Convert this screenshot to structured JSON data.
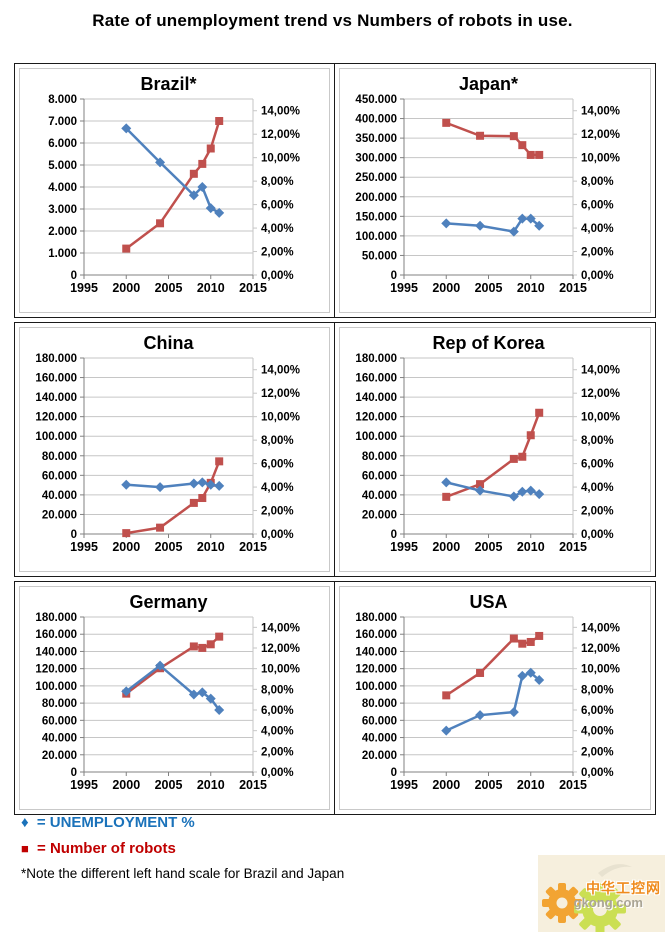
{
  "page": {
    "title": "Rate of unemployment trend vs Numbers of robots in use."
  },
  "legend": {
    "unemployment": {
      "marker": "♦",
      "label": "= UNEMPLOYMENT %",
      "color": "#1a72ba"
    },
    "robots": {
      "marker": "■",
      "label": "= Number of robots",
      "color": "#c00000"
    },
    "note": "*Note the different left hand scale for Brazil and Japan"
  },
  "watermark": {
    "site_name": "中华工控网",
    "domain": "gkong.com",
    "gear_orange": "#f2a433",
    "gear_green": "#cbdf53"
  },
  "chart_data": {
    "type": "line",
    "title": "Rate of unemployment trend vs Numbers of robots in use.",
    "layout": {
      "grid": "2 columns x 3 rows",
      "gridlines": "horizontal",
      "legend_position": "below charts",
      "dual_axis": true
    },
    "colors": {
      "unemployment_line": "#4f81bd",
      "robots_line": "#c0504d",
      "gridline": "#c6c6c6",
      "axis": "#808080",
      "text": "#000000"
    },
    "x_axis": {
      "min": 1995,
      "max": 2015,
      "ticks": [
        "1995",
        "2000",
        "2005",
        "2010",
        "2015"
      ]
    },
    "right_axis": {
      "label": "unemployment %",
      "max": 15,
      "tick_values": [
        14,
        12,
        10,
        8,
        6,
        4,
        2,
        0
      ],
      "tick_labels": [
        "14,00%",
        "12,00%",
        "10,00%",
        "8,00%",
        "6,00%",
        "4,00%",
        "2,00%",
        "0,00%"
      ]
    },
    "years": [
      2000,
      2004,
      2008,
      2009,
      2010,
      2011
    ],
    "charts": [
      {
        "title": "Brazil*",
        "left_max": 8000,
        "left_tick_labels": [
          "8.000",
          "7.000",
          "6.000",
          "5.000",
          "4.000",
          "3.000",
          "2.000",
          "1.000",
          "0"
        ],
        "robots": [
          1200,
          2350,
          4600,
          5050,
          5750,
          7000
        ],
        "unemployment_pct": [
          12.5,
          9.6,
          6.8,
          7.5,
          5.7,
          5.3
        ]
      },
      {
        "title": "Japan*",
        "left_max": 450000,
        "left_tick_labels": [
          "450.000",
          "400.000",
          "350.000",
          "300.000",
          "250.000",
          "200.000",
          "150.000",
          "100.000",
          "50.000",
          "0"
        ],
        "robots": [
          389000,
          356000,
          355000,
          332000,
          307000,
          307000
        ],
        "unemployment_pct": [
          4.4,
          4.2,
          3.7,
          4.8,
          4.8,
          4.2
        ]
      },
      {
        "title": "China",
        "left_max": 180000,
        "left_tick_labels": [
          "180.000",
          "160.000",
          "140.000",
          "120.000",
          "100.000",
          "80.000",
          "60.000",
          "40.000",
          "20.000",
          "0"
        ],
        "robots": [
          900,
          6500,
          31800,
          36800,
          52300,
          74300
        ],
        "unemployment_pct": [
          4.2,
          4.0,
          4.3,
          4.4,
          4.2,
          4.1
        ]
      },
      {
        "title": "Rep of Korea",
        "left_max": 180000,
        "left_tick_labels": [
          "180.000",
          "160.000",
          "140.000",
          "120.000",
          "100.000",
          "80.000",
          "60.000",
          "40.000",
          "20.000",
          "0"
        ],
        "robots": [
          38000,
          51000,
          76800,
          79000,
          101000,
          124000
        ],
        "unemployment_pct": [
          4.4,
          3.7,
          3.2,
          3.6,
          3.7,
          3.4
        ]
      },
      {
        "title": "Germany",
        "left_max": 180000,
        "left_tick_labels": [
          "180.000",
          "160.000",
          "140.000",
          "120.000",
          "100.000",
          "80.000",
          "60.000",
          "40.000",
          "20.000",
          "0"
        ],
        "robots": [
          91000,
          120500,
          145800,
          144100,
          148300,
          157200
        ],
        "unemployment_pct": [
          7.8,
          10.3,
          7.5,
          7.7,
          7.1,
          6.0
        ]
      },
      {
        "title": "USA",
        "left_max": 180000,
        "left_tick_labels": [
          "180.000",
          "160.000",
          "140.000",
          "120.000",
          "100.000",
          "80.000",
          "60.000",
          "40.000",
          "20.000",
          "0"
        ],
        "robots": [
          89000,
          115000,
          155000,
          149000,
          151000,
          158000
        ],
        "unemployment_pct": [
          4.0,
          5.5,
          5.8,
          9.3,
          9.6,
          8.9
        ]
      }
    ]
  }
}
